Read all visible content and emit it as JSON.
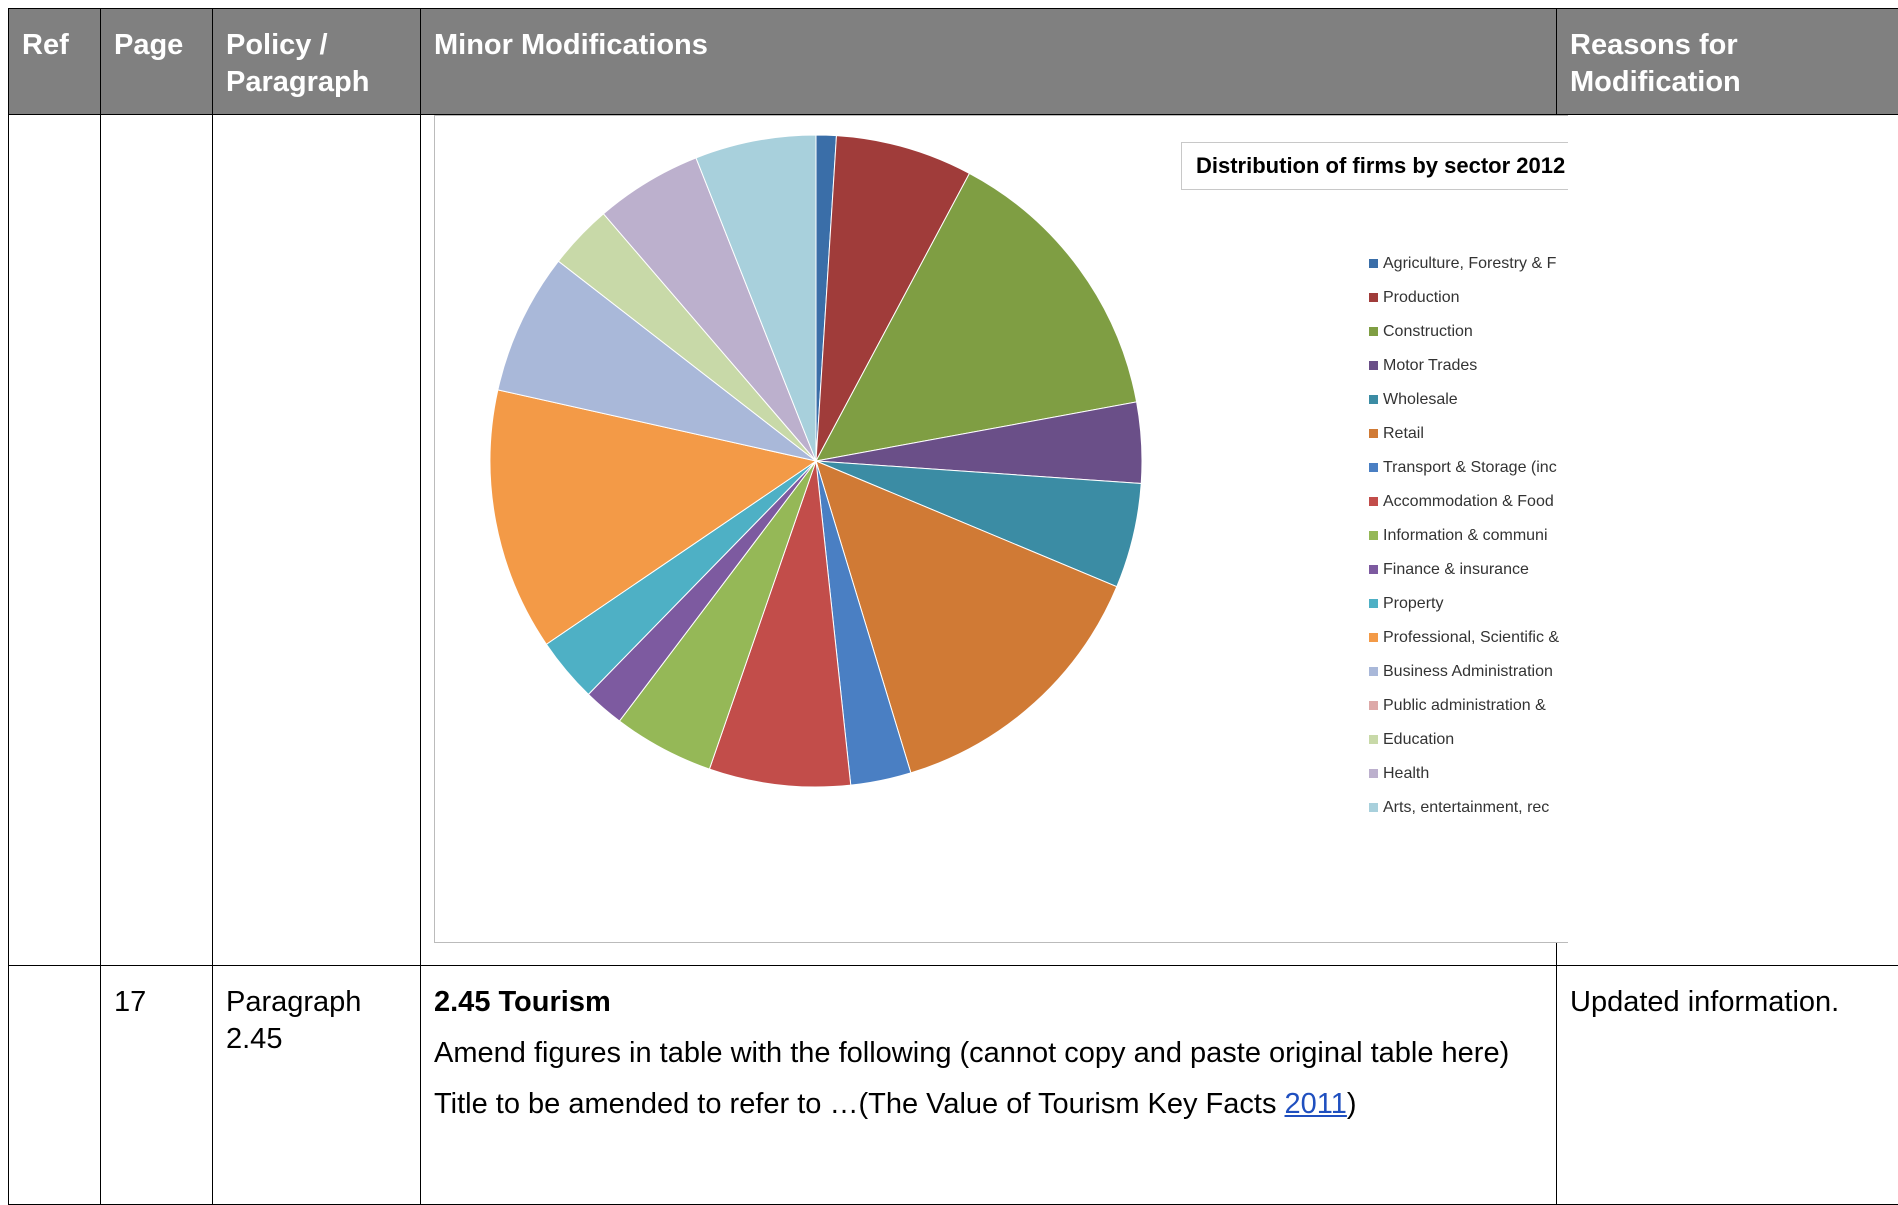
{
  "table": {
    "headers": {
      "ref": "Ref",
      "page": "Page",
      "policy": "Policy / Paragraph",
      "modifications": "Minor Modifications",
      "reasons": "Reasons for Modification"
    },
    "row2": {
      "ref": "",
      "page": "17",
      "policy": "Paragraph 2.45",
      "title": "2.45 Tourism",
      "para1": "Amend figures in table with the following (cannot copy and paste original table here)",
      "para2_prefix": "Title to be amended to refer to …(The Value of Tourism Key Facts ",
      "para2_link": "2011",
      "para2_suffix": ")",
      "reason": "Updated information."
    }
  },
  "chart_data": {
    "type": "pie",
    "title": "Distribution of firms by sector 2012",
    "legend_position": "right",
    "categories": [
      "Agriculture, Forestry & Fishing",
      "Production",
      "Construction",
      "Motor Trades",
      "Wholesale",
      "Retail",
      "Transport & Storage (inc postal)",
      "Accommodation & Food services",
      "Information & communication",
      "Finance & insurance",
      "Property",
      "Professional, Scientific & technical",
      "Business Administration & support services",
      "Public administration & defence",
      "Education",
      "Health",
      "Arts, entertainment, recreation & other services"
    ],
    "values": [
      1.0,
      6.8,
      14.3,
      4.0,
      5.2,
      14.0,
      3.0,
      7.0,
      5.0,
      2.0,
      3.2,
      13.0,
      7.0,
      0.0,
      3.2,
      5.3,
      6.0
    ],
    "colors": [
      "#3a6ea8",
      "#a03c3a",
      "#7f9e43",
      "#6a4f88",
      "#3b8ca4",
      "#d07a35",
      "#4a7fc3",
      "#c24d4a",
      "#95b857",
      "#7d5aa0",
      "#4eb0c5",
      "#f39a47",
      "#a9b8d9",
      "#dda9a8",
      "#c8d9a8",
      "#bcb0cd",
      "#a8d0dc"
    ],
    "legend_labels": [
      "Agriculture, Forestry & F",
      "Production",
      "Construction",
      "Motor Trades",
      "Wholesale",
      "Retail",
      "Transport & Storage (inc",
      "Accommodation & Food",
      "Information & communi",
      "Finance & insurance",
      "Property",
      "Professional, Scientific &",
      "Business Administration",
      "Public administration &",
      "Education",
      "Health",
      "Arts, entertainment, rec"
    ],
    "visible_title": "Distribution of firms by sector 2012"
  }
}
